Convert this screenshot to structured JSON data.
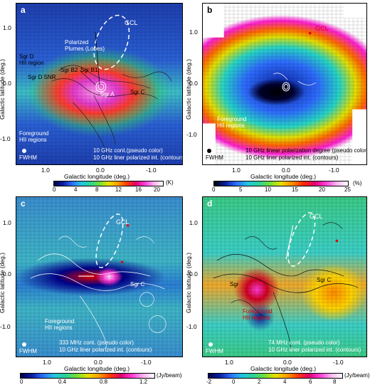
{
  "panel_a": {
    "label": "a",
    "annotations": [
      "GCL",
      "Polarized",
      "Plumes (Lobes)",
      "Sgr D",
      "HII region",
      "Sgr B2",
      "Sgr B1",
      "Sgr D SNR",
      "Sgr A",
      "Sgr C",
      "Foreground",
      "HII regions",
      "FWHM"
    ],
    "caption_line1": "10 GHz cont.(pseudo color)",
    "caption_line2": "10 GHz liner polarized int. (contours)",
    "y_ticks": [
      "1.0",
      "0.0",
      "-1.0"
    ],
    "x_ticks": [
      "1.0",
      "0.0",
      "-1.0"
    ],
    "y_label": "Galactic latitude (deg.)",
    "x_label": "Galactic longitude (deg.)",
    "colorbar_ticks": [
      "0",
      "4",
      "8",
      "12",
      "16",
      "20",
      "(K)"
    ]
  },
  "panel_b": {
    "label": "b",
    "annotations": [
      "GCL",
      "Foreground",
      "HII regions",
      "FWHM"
    ],
    "caption_line1": "10 GHz linear polarization degree (pseudo color)",
    "caption_line2": "10 GHz liner polarized int. (contours)",
    "y_ticks": [
      "1.0",
      "0.0",
      "-1.0"
    ],
    "x_ticks": [
      "1.0",
      "0.0",
      "-1.0"
    ],
    "y_label": "Galactic latitude (deg.)",
    "x_label": "Galactic longitude (deg.)",
    "colorbar_ticks": [
      "0",
      "5",
      "10",
      "15",
      "20",
      "25",
      "(%)"
    ]
  },
  "panel_c": {
    "label": "c",
    "annotations": [
      "GCL",
      "Sgr C",
      "Foreground",
      "HII regions",
      "FWHM"
    ],
    "caption_line1": "333 MHz cont. (pseudo color)",
    "caption_line2": "10 GHz liner polarized int. (contours)",
    "y_ticks": [
      "1.0",
      "0.0",
      "-1.0"
    ],
    "x_ticks": [
      "1.0",
      "0.0",
      "-1.0"
    ],
    "y_label": "Galactic latitude (deg.)",
    "x_label": "Galactic longitude (deg.)",
    "colorbar_ticks": [
      "0",
      "0.4",
      "0.8",
      "1.2",
      "(Jy/beam)"
    ]
  },
  "panel_d": {
    "label": "d",
    "annotations": [
      "GCL",
      "Sgr C",
      "Sgr",
      "Foreground",
      "HII regions",
      "FWHM"
    ],
    "caption_line1": "74 MHz cont. (pseudo color)",
    "caption_line2": "10 GHz liner polarized int. (contours)",
    "y_ticks": [
      "1.0",
      "0.0",
      "-1.0"
    ],
    "x_ticks": [
      "1.0",
      "0.0",
      "-1.0"
    ],
    "y_label": "Galactic latitude (deg.)",
    "x_label": "Galactic longitude (deg.)",
    "colorbar_ticks": [
      "-2",
      "0",
      "2",
      "4",
      "6",
      "8",
      "(Jy/beam)"
    ]
  },
  "colors": {
    "colorbar_gradient": "linear-gradient(90deg,#00004d,#0a1e9c,#2d6cff,#22c4e0,#2ad29a,#6ee03a,#e6e000,#ffa000,#ff3c00,#e0006e,#ff3bd8,#ffb3f0,#ffffff)",
    "polar_gradient": "linear-gradient(90deg,#000000,#0a1e9c,#2d6cff,#22c4e0,#2ad29a,#6ee03a,#e6e000,#ff8a00,#ff2a00,#e0006e,#ff3bd8,#ffb3f0,#ffffff)"
  }
}
